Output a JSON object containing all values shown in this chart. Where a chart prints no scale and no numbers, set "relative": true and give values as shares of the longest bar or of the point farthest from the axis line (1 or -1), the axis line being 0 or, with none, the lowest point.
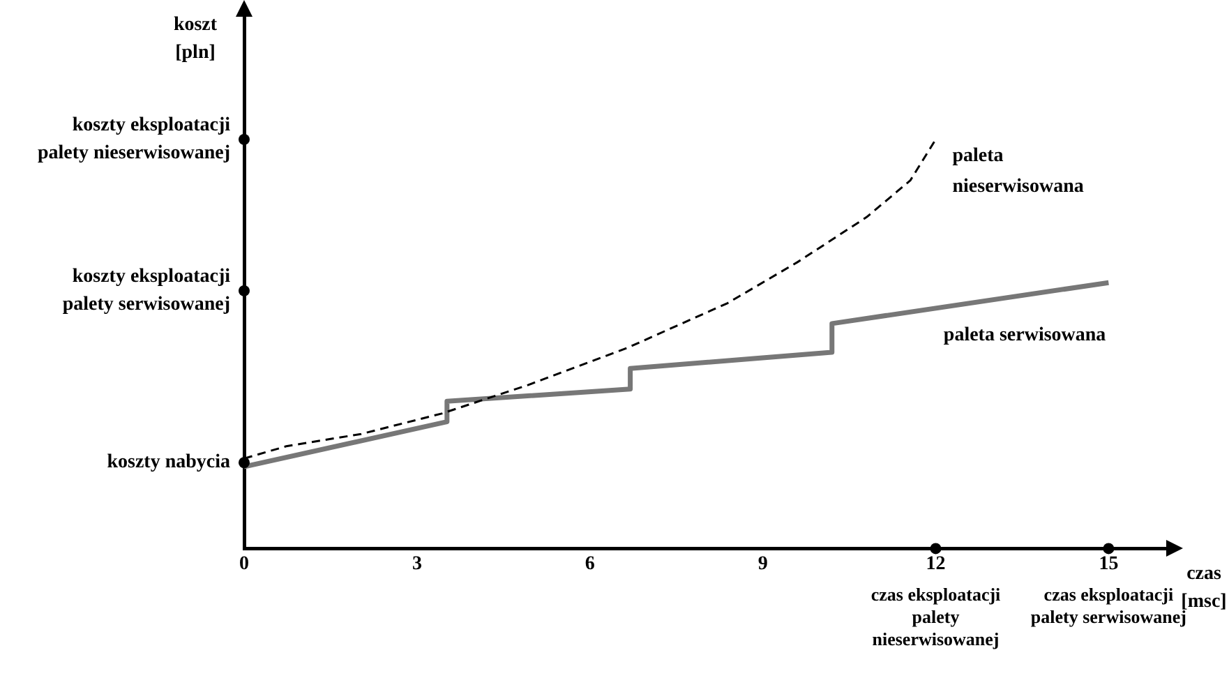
{
  "chart_data": {
    "type": "line",
    "relative": true,
    "ylabel": "koszt [pln]",
    "xlabel": "czas [msc]",
    "xlim": [
      0,
      16
    ],
    "xticks": [
      0,
      3,
      6,
      9,
      12,
      15
    ],
    "grid": false,
    "legend": false,
    "marker": "none",
    "series": [
      {
        "name": "paleta nieserwisowana",
        "color": "#000000",
        "line_style": "dashed",
        "x": [
          0,
          0.73,
          2.03,
          3.43,
          4.93,
          6.64,
          8.39,
          9.6,
          10.8,
          11.56,
          12
        ],
        "values": [
          0.22,
          0.25,
          0.28,
          0.33,
          0.4,
          0.49,
          0.6,
          0.7,
          0.81,
          0.9,
          1.0
        ]
      },
      {
        "name": "paleta serwisowana",
        "color": "#777777",
        "line_style": "solid",
        "x": [
          0,
          3.52,
          3.52,
          6.7,
          6.7,
          10.2,
          10.2,
          15
        ],
        "values": [
          0.2,
          0.31,
          0.36,
          0.39,
          0.44,
          0.48,
          0.55,
          0.65
        ]
      }
    ],
    "annotations": [
      {
        "text": "koszty eksploatacji palety nieserwisowanej",
        "x": 0,
        "y": 1.0
      },
      {
        "text": "koszty eksploatacji palety serwisowanej",
        "x": 0,
        "y": 0.63
      },
      {
        "text": "koszty nabycia",
        "x": 0,
        "y": 0.21
      },
      {
        "text": "czas eksploatacji palety nieserwisowanej",
        "x": 12,
        "y": 0
      },
      {
        "text": "czas eksploatacji palety serwisowanej",
        "x": 15,
        "y": 0
      }
    ]
  }
}
